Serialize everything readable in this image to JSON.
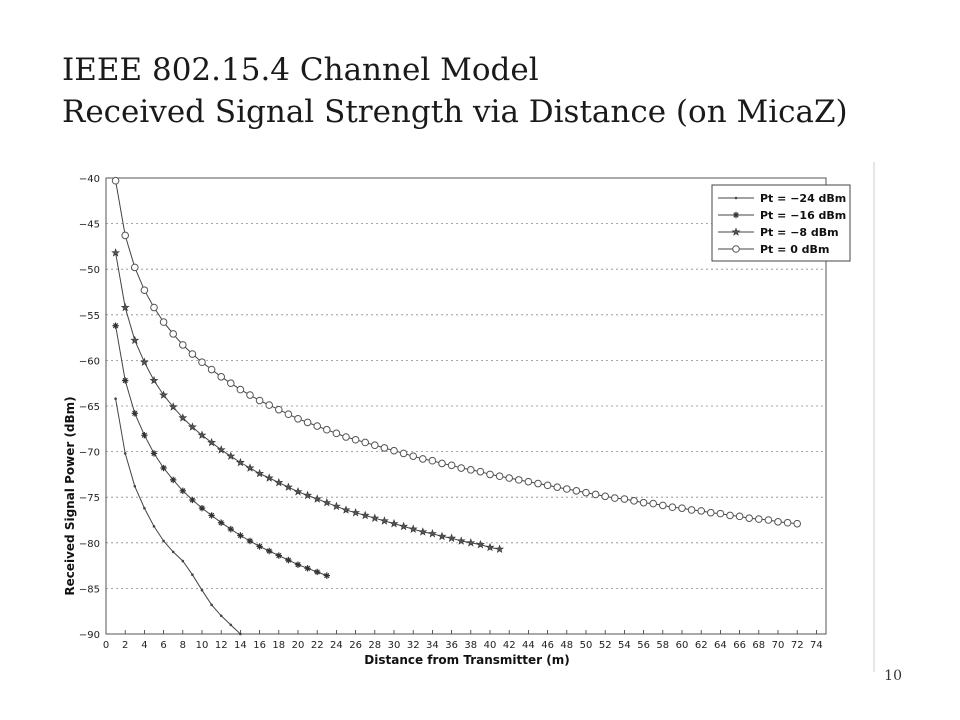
{
  "slide": {
    "title_line1": "IEEE 802.15.4 Channel Model",
    "title_line2": "Received Signal Strength via Distance (on MicaZ)",
    "page_number": "10"
  },
  "chart_data": {
    "type": "line",
    "xlabel": "Distance from Transmitter (m)",
    "ylabel": "Received Signal Power (dBm)",
    "xlim": [
      0,
      75
    ],
    "ylim": [
      -90,
      -40
    ],
    "xticks": [
      0,
      2,
      4,
      6,
      8,
      10,
      12,
      14,
      16,
      18,
      20,
      22,
      24,
      26,
      28,
      30,
      32,
      34,
      36,
      38,
      40,
      42,
      44,
      46,
      48,
      50,
      52,
      54,
      56,
      58,
      60,
      62,
      64,
      66,
      68,
      70,
      72,
      74
    ],
    "yticks": [
      -40,
      -45,
      -50,
      -55,
      -60,
      -65,
      -70,
      -75,
      -80,
      -85,
      -90
    ],
    "grid": true,
    "legend_position": "top-right",
    "series": [
      {
        "name": "Pt = −24 dBm",
        "marker": "dot",
        "x": [
          1,
          2,
          3,
          4,
          5,
          6,
          7,
          8,
          9,
          10,
          11,
          12,
          13,
          14
        ],
        "y": [
          -64.2,
          -70.2,
          -73.8,
          -76.2,
          -78.2,
          -79.8,
          -81.0,
          -82.0,
          -83.5,
          -85.2,
          -86.8,
          -88.0,
          -89.0,
          -90.0
        ]
      },
      {
        "name": "Pt = −16 dBm",
        "marker": "star",
        "x": [
          1,
          2,
          3,
          4,
          5,
          6,
          7,
          8,
          9,
          10,
          11,
          12,
          13,
          14,
          15,
          16,
          17,
          18,
          19,
          20,
          21,
          22,
          23
        ],
        "y": [
          -56.2,
          -62.2,
          -65.8,
          -68.2,
          -70.2,
          -71.8,
          -73.1,
          -74.3,
          -75.3,
          -76.2,
          -77.0,
          -77.8,
          -78.5,
          -79.2,
          -79.8,
          -80.4,
          -80.9,
          -81.4,
          -81.9,
          -82.4,
          -82.8,
          -83.2,
          -83.6
        ]
      },
      {
        "name": "Pt = −8 dBm",
        "marker": "pentagram",
        "x": [
          1,
          2,
          3,
          4,
          5,
          6,
          7,
          8,
          9,
          10,
          11,
          12,
          13,
          14,
          15,
          16,
          17,
          18,
          19,
          20,
          21,
          22,
          23,
          24,
          25,
          26,
          27,
          28,
          29,
          30,
          31,
          32,
          33,
          34,
          35,
          36,
          37,
          38,
          39,
          40,
          41
        ],
        "y": [
          -48.2,
          -54.2,
          -57.8,
          -60.2,
          -62.2,
          -63.8,
          -65.1,
          -66.3,
          -67.3,
          -68.2,
          -69.0,
          -69.8,
          -70.5,
          -71.2,
          -71.8,
          -72.4,
          -72.9,
          -73.4,
          -73.9,
          -74.4,
          -74.8,
          -75.2,
          -75.6,
          -76.0,
          -76.4,
          -76.7,
          -77.0,
          -77.3,
          -77.6,
          -77.9,
          -78.2,
          -78.5,
          -78.8,
          -79.0,
          -79.3,
          -79.5,
          -79.8,
          -80.0,
          -80.2,
          -80.5,
          -80.7
        ]
      },
      {
        "name": "Pt = 0 dBm",
        "marker": "circle",
        "x": [
          1,
          2,
          3,
          4,
          5,
          6,
          7,
          8,
          9,
          10,
          11,
          12,
          13,
          14,
          15,
          16,
          17,
          18,
          19,
          20,
          21,
          22,
          23,
          24,
          25,
          26,
          27,
          28,
          29,
          30,
          31,
          32,
          33,
          34,
          35,
          36,
          37,
          38,
          39,
          40,
          41,
          42,
          43,
          44,
          45,
          46,
          47,
          48,
          49,
          50,
          51,
          52,
          53,
          54,
          55,
          56,
          57,
          58,
          59,
          60,
          61,
          62,
          63,
          64,
          65,
          66,
          67,
          68,
          69,
          70,
          71,
          72
        ],
        "y": [
          -40.3,
          -46.3,
          -49.8,
          -52.3,
          -54.2,
          -55.8,
          -57.1,
          -58.3,
          -59.3,
          -60.2,
          -61.0,
          -61.8,
          -62.5,
          -63.2,
          -63.8,
          -64.4,
          -64.9,
          -65.4,
          -65.9,
          -66.4,
          -66.8,
          -67.2,
          -67.6,
          -68.0,
          -68.4,
          -68.7,
          -69.0,
          -69.3,
          -69.6,
          -69.9,
          -70.2,
          -70.5,
          -70.8,
          -71.0,
          -71.3,
          -71.5,
          -71.8,
          -72.0,
          -72.2,
          -72.5,
          -72.7,
          -72.9,
          -73.1,
          -73.3,
          -73.5,
          -73.7,
          -73.9,
          -74.1,
          -74.3,
          -74.5,
          -74.7,
          -74.9,
          -75.1,
          -75.2,
          -75.4,
          -75.6,
          -75.7,
          -75.9,
          -76.1,
          -76.2,
          -76.4,
          -76.5,
          -76.7,
          -76.8,
          -77.0,
          -77.1,
          -77.3,
          -77.4,
          -77.5,
          -77.7,
          -77.8,
          -77.9
        ]
      }
    ]
  }
}
